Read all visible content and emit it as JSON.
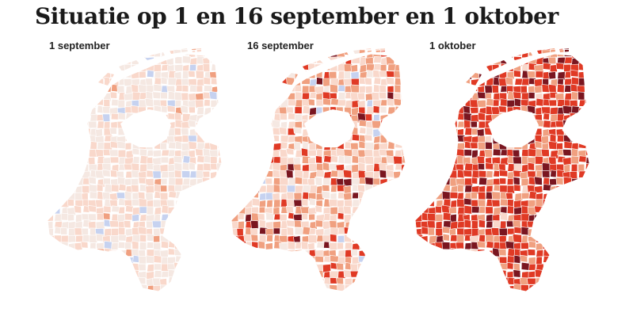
{
  "title": "Situatie op 1 en 16 september en 1 oktober",
  "maps": [
    {
      "label": "1 september",
      "weights": [
        0.04,
        0.46,
        0.46,
        0.04,
        0.0,
        0.0
      ]
    },
    {
      "label": "16 september",
      "weights": [
        0.03,
        0.12,
        0.4,
        0.3,
        0.12,
        0.03
      ]
    },
    {
      "label": "1 oktober",
      "weights": [
        0.0,
        0.0,
        0.02,
        0.22,
        0.6,
        0.16
      ]
    }
  ],
  "colors": {
    "scale": [
      "#c6d2f0",
      "#f5e8e2",
      "#f9d8cb",
      "#f0a080",
      "#e03a25",
      "#7a1620"
    ],
    "border": "#ffffff"
  }
}
